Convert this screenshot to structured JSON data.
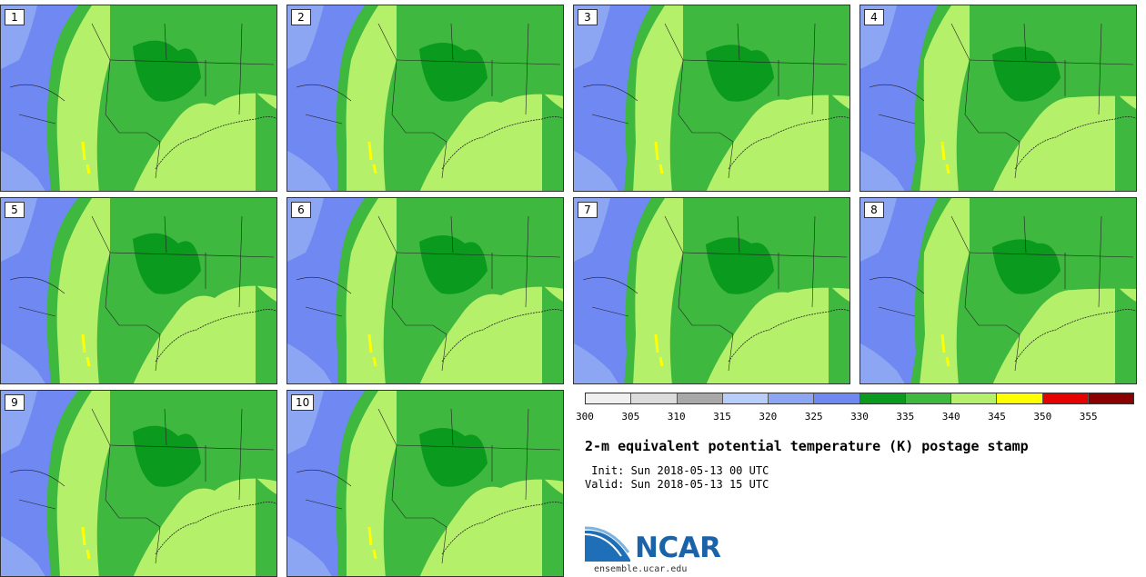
{
  "panels": [
    "1",
    "2",
    "3",
    "4",
    "5",
    "6",
    "7",
    "8",
    "9",
    "10"
  ],
  "colorbar": {
    "colors": [
      "#f0f0f0",
      "#dcdcdc",
      "#a8a8a8",
      "#b9cdfa",
      "#8ca6f4",
      "#6f88f2",
      "#0a9a1e",
      "#3fb83f",
      "#b5f06a",
      "#ffff00",
      "#e60000",
      "#8b0000"
    ],
    "ticks": [
      "300",
      "305",
      "310",
      "315",
      "320",
      "325",
      "330",
      "335",
      "340",
      "345",
      "350",
      "355"
    ]
  },
  "title": "2-m equivalent potential temperature (K) postage stamp",
  "init": " Init: Sun 2018-05-13 00 UTC",
  "valid": "Valid: Sun 2018-05-13 15 UTC",
  "logo": {
    "name": "NCAR",
    "url": "ensemble.ucar.edu"
  }
}
